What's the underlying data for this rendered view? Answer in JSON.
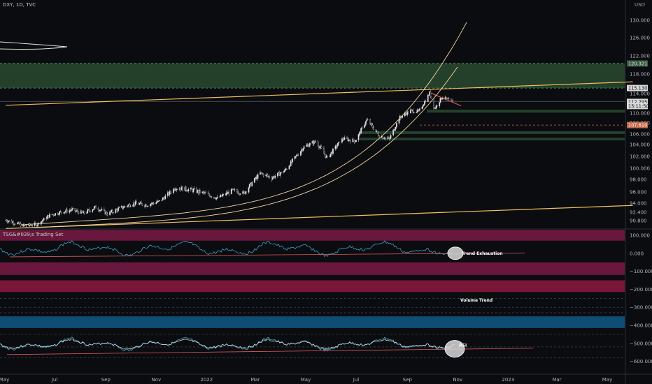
{
  "header": {
    "symbol_line": "DXY, 1D, TVC",
    "indicator_title": "TSG&#039;s Trading Set"
  },
  "price_axis": {
    "currency": "USD"
  },
  "chart_data": [
    {
      "type": "line",
      "name": "main",
      "ylim": [
        89.6,
        132.0
      ],
      "y_ticks": [
        90.8,
        92.4,
        94.0,
        96.0,
        98.0,
        100.0,
        102.0,
        104.0,
        106.0,
        108.0,
        110.0,
        114.0,
        118.0,
        122.0,
        126.0,
        130.0
      ],
      "y_tick_labels": [
        "90.800",
        "92.400",
        "94.000",
        "96.000",
        "98.000",
        "100.000",
        "102.000",
        "104.000",
        "106.000",
        "108.000",
        "110.000",
        "114.000",
        "118.000",
        "122.000",
        "126.000",
        "130.000"
      ],
      "price_badges": [
        {
          "label": "120.321",
          "value": 120.321,
          "color": "#3a5a44",
          "text_color": "#cfe8d6"
        },
        {
          "label": "115.130",
          "value": 115.13,
          "color": "#d9d9d9",
          "text_color": "#111111"
        },
        {
          "label": "112.295",
          "value": 112.295,
          "color": "#d9d9d9",
          "text_color": "#111111"
        },
        {
          "label": "15:11:50",
          "value": 111.45,
          "color": "#d9d9d9",
          "text_color": "#111111"
        },
        {
          "label": "107.610",
          "value": 107.61,
          "color": "#c26a4a",
          "text_color": "#ffffff"
        }
      ],
      "price_points": [
        [
          "2021-05-03",
          90.9
        ],
        [
          "2021-05-25",
          89.8
        ],
        [
          "2021-06-10",
          90.1
        ],
        [
          "2021-06-25",
          91.8
        ],
        [
          "2021-07-08",
          92.4
        ],
        [
          "2021-07-22",
          92.8
        ],
        [
          "2021-08-05",
          92.2
        ],
        [
          "2021-08-20",
          93.3
        ],
        [
          "2021-09-03",
          92.1
        ],
        [
          "2021-09-20",
          93.2
        ],
        [
          "2021-10-05",
          94.0
        ],
        [
          "2021-10-20",
          93.7
        ],
        [
          "2021-11-05",
          94.3
        ],
        [
          "2021-11-24",
          96.7
        ],
        [
          "2021-12-15",
          96.3
        ],
        [
          "2021-12-31",
          95.7
        ],
        [
          "2022-01-14",
          94.9
        ],
        [
          "2022-02-01",
          96.2
        ],
        [
          "2022-02-15",
          95.8
        ],
        [
          "2022-03-07",
          99.1
        ],
        [
          "2022-03-21",
          98.3
        ],
        [
          "2022-04-05",
          99.5
        ],
        [
          "2022-04-28",
          103.5
        ],
        [
          "2022-05-13",
          104.6
        ],
        [
          "2022-05-27",
          101.7
        ],
        [
          "2022-06-15",
          105.1
        ],
        [
          "2022-06-30",
          104.7
        ],
        [
          "2022-07-14",
          108.6
        ],
        [
          "2022-07-29",
          105.7
        ],
        [
          "2022-08-10",
          105.0
        ],
        [
          "2022-08-23",
          109.1
        ],
        [
          "2022-09-05",
          110.5
        ],
        [
          "2022-09-15",
          110.3
        ],
        [
          "2022-09-28",
          114.1
        ],
        [
          "2022-10-04",
          110.9
        ],
        [
          "2022-10-13",
          113.3
        ],
        [
          "2022-10-21",
          112.6
        ],
        [
          "2022-10-27",
          112.3
        ]
      ],
      "zones": [
        {
          "from": 115.13,
          "to": 120.321,
          "color": "#27462f"
        },
        {
          "from": 110.1,
          "to": 110.7,
          "color": "#27462f"
        },
        {
          "from": 106.0,
          "to": 106.5,
          "color": "#27462f"
        },
        {
          "from": 104.8,
          "to": 105.3,
          "color": "#27462f"
        }
      ],
      "channel_lines": [
        {
          "from": [
            "2021-05-03",
            111.6
          ],
          "to": [
            "2023-06-01",
            116.4
          ],
          "color": "#f0c15a"
        },
        {
          "from": [
            "2021-05-03",
            89.3
          ],
          "to": [
            "2023-06-01",
            93.6
          ],
          "color": "#f0c15a"
        },
        {
          "from": [
            "2022-09-28",
            114.2
          ],
          "to": [
            "2022-11-05",
            111.5
          ],
          "color": "#e05a5a"
        }
      ],
      "grid": false,
      "legend": "none"
    },
    {
      "type": "line",
      "name": "oscillator",
      "ylim": [
        -640,
        150
      ],
      "y_ticks": [
        100,
        0,
        -100,
        -200,
        -300,
        -400,
        -500,
        -600
      ],
      "y_tick_labels": [
        "100.000",
        "0.000",
        "−100.000",
        "−200.000",
        "−300.000",
        "−400.000",
        "−500.000",
        "−600.000"
      ],
      "annotations": [
        {
          "text": "Trend Exhaustion",
          "x": "2022-11-01",
          "y": 0
        },
        {
          "text": "Volume Trend",
          "x": "2022-11-12",
          "y": -260
        },
        {
          "text": "RSI",
          "x": "2022-10-30",
          "y": -510
        }
      ],
      "bands": [
        {
          "from": 130,
          "to": 70,
          "color": "#7a1a44"
        },
        {
          "from": -50,
          "to": -120,
          "color": "#7a1a44"
        },
        {
          "from": -150,
          "to": -215,
          "color": "#8e1a40"
        },
        {
          "from": -350,
          "to": -415,
          "color": "#0f5a86"
        }
      ],
      "grid": false,
      "legend": "none"
    }
  ],
  "time_axis": {
    "ticks": [
      {
        "label": "May",
        "date": "2021-05-01"
      },
      {
        "label": "Jul",
        "date": "2021-07-01"
      },
      {
        "label": "Sep",
        "date": "2021-09-01"
      },
      {
        "label": "Nov",
        "date": "2021-11-01"
      },
      {
        "label": "2022",
        "date": "2022-01-01"
      },
      {
        "label": "Mar",
        "date": "2022-03-01"
      },
      {
        "label": "May",
        "date": "2022-05-01"
      },
      {
        "label": "Jul",
        "date": "2022-07-01"
      },
      {
        "label": "Sep",
        "date": "2022-09-01"
      },
      {
        "label": "Nov",
        "date": "2022-11-01"
      },
      {
        "label": "2023",
        "date": "2023-01-01"
      },
      {
        "label": "Mar",
        "date": "2023-03-01"
      },
      {
        "label": "May",
        "date": "2023-05-01"
      }
    ]
  },
  "colors": {
    "background": "#0b0c10",
    "candle_up": "#e6e6e6",
    "candle_down": "#1b1b1b",
    "channel": "#f0c15a",
    "curve": "#f4d6a0",
    "osc_line": "#3fa2c2",
    "trend_line": "#e05a5a"
  }
}
